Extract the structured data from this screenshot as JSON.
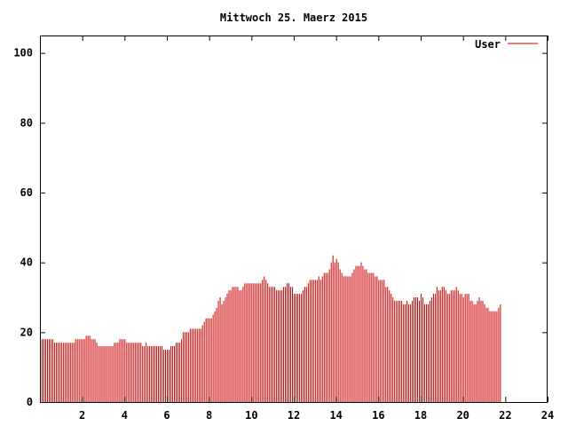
{
  "chart_data": {
    "type": "bar",
    "title": "Mittwoch 25. Maerz 2015",
    "xlabel": "",
    "ylabel": "",
    "xlim": [
      0,
      24
    ],
    "ylim": [
      0,
      105
    ],
    "x_ticks": [
      {
        "value": 2,
        "label": "2"
      },
      {
        "value": 4,
        "label": "4"
      },
      {
        "value": 6,
        "label": "6"
      },
      {
        "value": 8,
        "label": "8"
      },
      {
        "value": 10,
        "label": "10"
      },
      {
        "value": 12,
        "label": "12"
      },
      {
        "value": 14,
        "label": "14"
      },
      {
        "value": 16,
        "label": "16"
      },
      {
        "value": 18,
        "label": "18"
      },
      {
        "value": 20,
        "label": "20"
      },
      {
        "value": 22,
        "label": "22"
      },
      {
        "value": 24,
        "label": "24"
      }
    ],
    "y_ticks": [
      {
        "value": 0,
        "label": "0"
      },
      {
        "value": 20,
        "label": "20"
      },
      {
        "value": 40,
        "label": "40"
      },
      {
        "value": 60,
        "label": "60"
      },
      {
        "value": 80,
        "label": "80"
      },
      {
        "value": 100,
        "label": "100"
      }
    ],
    "grid": false,
    "legend_position": "top-right",
    "sample_interval_hours": 0.08333,
    "series": [
      {
        "name": "User",
        "color": "#cc0000",
        "values": [
          18,
          18,
          18,
          18,
          18,
          18,
          18,
          18,
          17,
          17,
          17,
          17,
          17,
          17,
          17,
          17,
          17,
          17,
          17,
          17,
          18,
          18,
          18,
          18,
          18,
          18,
          19,
          19,
          19,
          18,
          18,
          18,
          17,
          16,
          16,
          16,
          16,
          16,
          16,
          16,
          16,
          16,
          17,
          17,
          17,
          18,
          18,
          18,
          18,
          17,
          17,
          17,
          17,
          17,
          17,
          17,
          17,
          17,
          16,
          16,
          17,
          16,
          16,
          16,
          16,
          16,
          16,
          16,
          16,
          16,
          15,
          15,
          15,
          15,
          16,
          16,
          16,
          17,
          17,
          17,
          18,
          20,
          20,
          20,
          20,
          21,
          21,
          21,
          21,
          21,
          21,
          21,
          22,
          23,
          24,
          24,
          24,
          24,
          25,
          26,
          27,
          29,
          30,
          28,
          29,
          30,
          31,
          32,
          32,
          33,
          33,
          33,
          33,
          32,
          32,
          33,
          34,
          34,
          34,
          34,
          34,
          34,
          34,
          34,
          34,
          34,
          35,
          36,
          35,
          34,
          33,
          33,
          33,
          33,
          32,
          32,
          32,
          32,
          33,
          33,
          34,
          34,
          33,
          33,
          31,
          31,
          31,
          31,
          31,
          32,
          33,
          33,
          34,
          35,
          35,
          35,
          35,
          35,
          36,
          35,
          36,
          37,
          37,
          37,
          38,
          40,
          42,
          40,
          41,
          40,
          38,
          37,
          36,
          36,
          36,
          36,
          36,
          37,
          38,
          39,
          39,
          39,
          40,
          39,
          38,
          38,
          37,
          37,
          37,
          37,
          36,
          36,
          35,
          35,
          35,
          35,
          33,
          33,
          32,
          31,
          30,
          29,
          29,
          29,
          29,
          29,
          28,
          28,
          29,
          28,
          28,
          29,
          30,
          30,
          30,
          29,
          31,
          30,
          28,
          28,
          28,
          29,
          30,
          31,
          31,
          33,
          32,
          32,
          33,
          33,
          32,
          31,
          31,
          32,
          32,
          32,
          33,
          32,
          31,
          31,
          30,
          31,
          31,
          31,
          29,
          29,
          28,
          28,
          29,
          30,
          29,
          29,
          28,
          27,
          27,
          26,
          26,
          26,
          26,
          26,
          27,
          28
        ]
      }
    ]
  }
}
